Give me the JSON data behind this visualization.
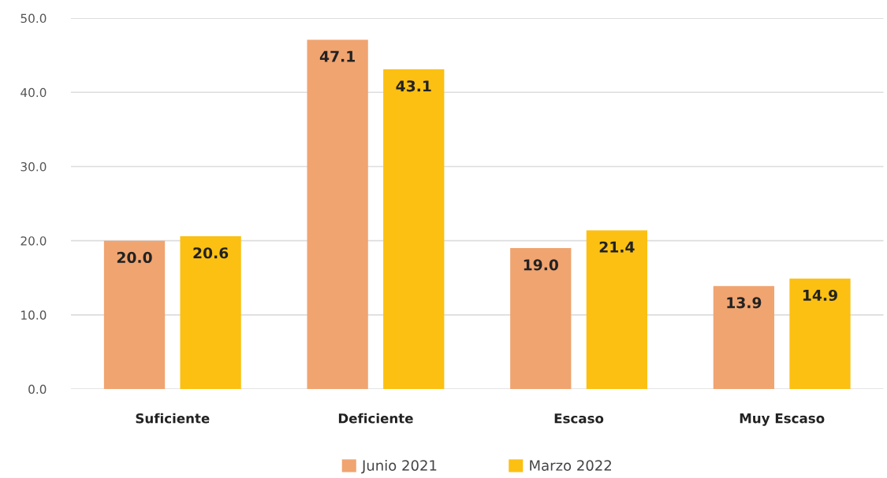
{
  "chart_data": {
    "type": "bar",
    "categories": [
      "Suficiente",
      "Deficiente",
      "Escaso",
      "Muy Escaso"
    ],
    "series": [
      {
        "name": "Junio 2021",
        "color": "#f0a470",
        "values": [
          20.0,
          47.1,
          19.0,
          13.9
        ],
        "value_labels": [
          "20.0",
          "47.1",
          "19.0",
          "13.9"
        ]
      },
      {
        "name": "Marzo 2022",
        "color": "#fbc012",
        "values": [
          20.6,
          43.1,
          21.4,
          14.9
        ],
        "value_labels": [
          "20.6",
          "43.1",
          "21.4",
          "14.9"
        ]
      }
    ],
    "ylim": [
      0,
      50
    ],
    "yticks": [
      {
        "value": 0,
        "label": "0.0"
      },
      {
        "value": 10,
        "label": "10.0"
      },
      {
        "value": 20,
        "label": "20.0"
      },
      {
        "value": 30,
        "label": "30.0"
      },
      {
        "value": 40,
        "label": "40.0"
      },
      {
        "value": 50,
        "label": "50.0"
      }
    ],
    "grid": "y",
    "legend": "bottom"
  }
}
